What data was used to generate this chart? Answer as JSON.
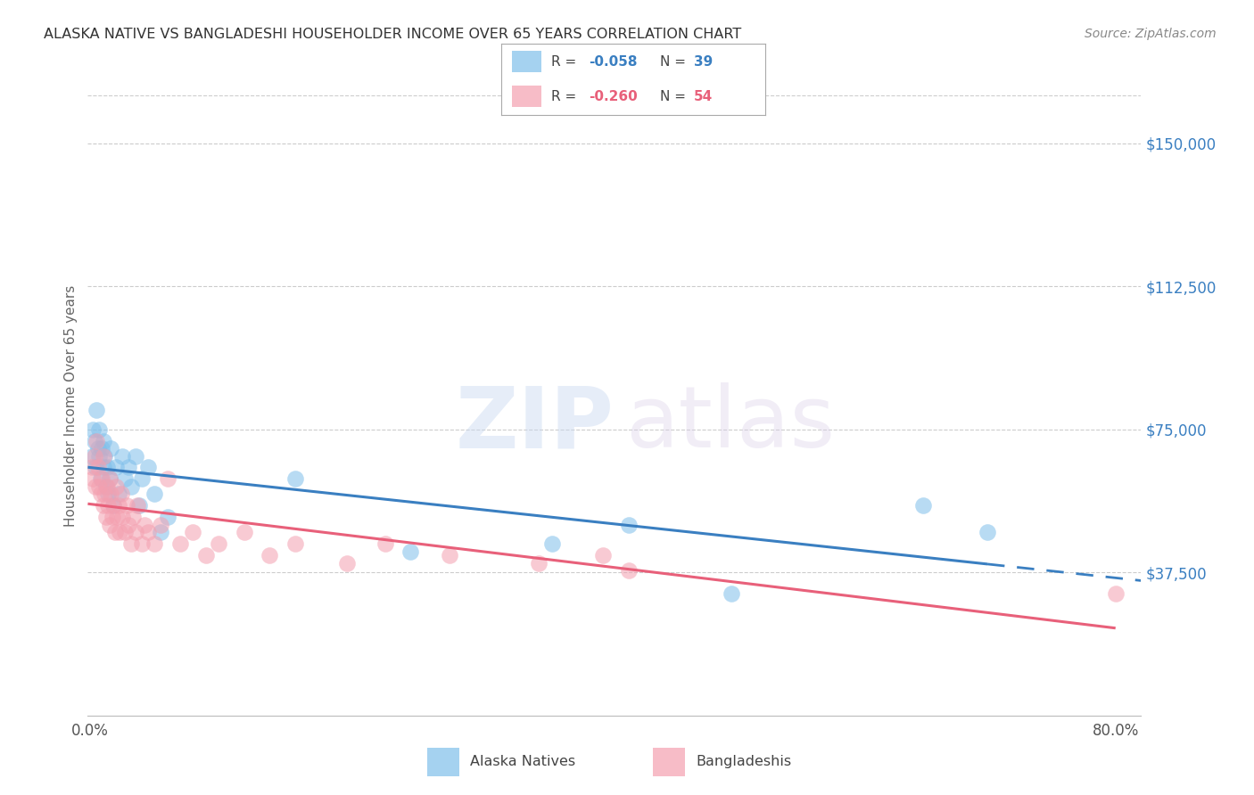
{
  "title": "ALASKA NATIVE VS BANGLADESHI HOUSEHOLDER INCOME OVER 65 YEARS CORRELATION CHART",
  "source": "Source: ZipAtlas.com",
  "ylabel": "Householder Income Over 65 years",
  "ytick_labels": [
    "$37,500",
    "$75,000",
    "$112,500",
    "$150,000"
  ],
  "ytick_values": [
    37500,
    75000,
    112500,
    150000
  ],
  "ymin": 0,
  "ymax": 162500,
  "xmin": -0.002,
  "xmax": 0.82,
  "color_alaska": "#7fbfea",
  "color_bangladesh": "#f4a0b0",
  "color_alaska_line": "#3a7fc1",
  "color_bangladesh_line": "#e8607a",
  "alaska_x": [
    0.001,
    0.002,
    0.003,
    0.004,
    0.005,
    0.006,
    0.007,
    0.007,
    0.008,
    0.009,
    0.01,
    0.01,
    0.011,
    0.012,
    0.013,
    0.014,
    0.015,
    0.016,
    0.018,
    0.02,
    0.022,
    0.025,
    0.027,
    0.03,
    0.032,
    0.035,
    0.038,
    0.04,
    0.045,
    0.05,
    0.055,
    0.06,
    0.16,
    0.25,
    0.36,
    0.42,
    0.5,
    0.65,
    0.7
  ],
  "alaska_y": [
    68000,
    75000,
    72000,
    65000,
    80000,
    70000,
    75000,
    68000,
    62000,
    70000,
    65000,
    72000,
    68000,
    60000,
    65000,
    58000,
    62000,
    70000,
    55000,
    65000,
    58000,
    68000,
    62000,
    65000,
    60000,
    68000,
    55000,
    62000,
    65000,
    58000,
    48000,
    52000,
    62000,
    43000,
    45000,
    50000,
    32000,
    55000,
    48000
  ],
  "bangladesh_x": [
    0.001,
    0.002,
    0.003,
    0.004,
    0.005,
    0.006,
    0.007,
    0.008,
    0.009,
    0.01,
    0.01,
    0.011,
    0.012,
    0.013,
    0.014,
    0.015,
    0.015,
    0.016,
    0.017,
    0.018,
    0.019,
    0.02,
    0.021,
    0.022,
    0.023,
    0.024,
    0.025,
    0.027,
    0.028,
    0.03,
    0.032,
    0.033,
    0.035,
    0.037,
    0.04,
    0.042,
    0.045,
    0.05,
    0.055,
    0.06,
    0.07,
    0.08,
    0.09,
    0.1,
    0.12,
    0.14,
    0.16,
    0.2,
    0.23,
    0.28,
    0.35,
    0.4,
    0.42,
    0.8
  ],
  "bangladesh_y": [
    65000,
    62000,
    68000,
    60000,
    72000,
    65000,
    60000,
    58000,
    62000,
    55000,
    68000,
    58000,
    52000,
    60000,
    55000,
    50000,
    62000,
    58000,
    52000,
    55000,
    48000,
    60000,
    52000,
    55000,
    48000,
    58000,
    52000,
    48000,
    55000,
    50000,
    45000,
    52000,
    48000,
    55000,
    45000,
    50000,
    48000,
    45000,
    50000,
    62000,
    45000,
    48000,
    42000,
    45000,
    48000,
    42000,
    45000,
    40000,
    45000,
    42000,
    40000,
    42000,
    38000,
    32000
  ]
}
